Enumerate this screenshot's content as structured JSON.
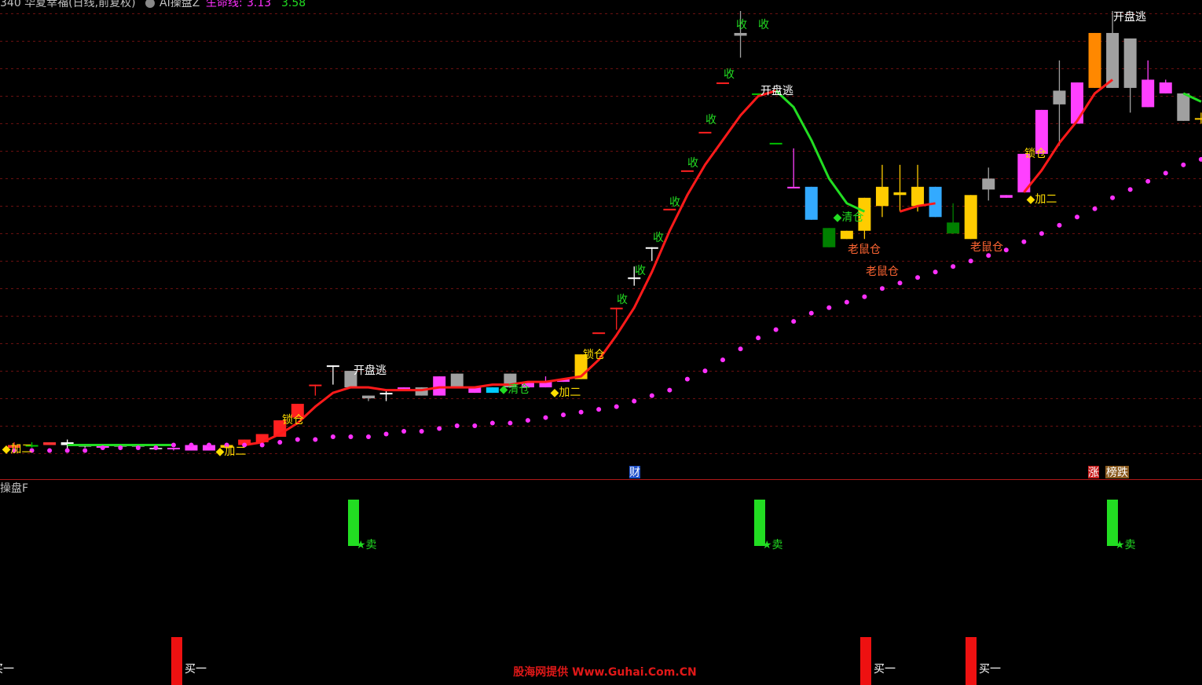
{
  "header": {
    "stock": "340 华夏幸福(日线,前复权)",
    "indicator": "AI操盘Z",
    "lifeline_label": "生命线:",
    "lifeline_values": [
      3.13,
      3.58
    ]
  },
  "chart_data": {
    "type": "candlestick",
    "categories": [
      null,
      null,
      null,
      null,
      null,
      null,
      null,
      null,
      null,
      null,
      null,
      null,
      null,
      null,
      null,
      null,
      null,
      null,
      null,
      null,
      null,
      null,
      null,
      null,
      null,
      null,
      null,
      null,
      null,
      null,
      null,
      null,
      null,
      null,
      null,
      null,
      null,
      null,
      null,
      null,
      null,
      null,
      null,
      null,
      null,
      null,
      null,
      null,
      null,
      null,
      null,
      null,
      null,
      null,
      null,
      null,
      null,
      null,
      null,
      null,
      null,
      null,
      null,
      null,
      null,
      null,
      null,
      null
    ],
    "ylim": [
      2.9,
      4.65
    ],
    "yticks": [
      3.0,
      3.1,
      3.2,
      3.3,
      3.4,
      3.5,
      3.6,
      3.7,
      3.8,
      3.9,
      4.0,
      4.1,
      4.2,
      4.3,
      4.4,
      4.5,
      4.6
    ],
    "grid": true,
    "grid_color": "#6a1010",
    "candles": {
      "open": [
        3.02,
        3.03,
        3.03,
        3.04,
        3.03,
        3.03,
        3.03,
        3.03,
        3.02,
        3.02,
        3.01,
        3.01,
        3.02,
        3.03,
        3.04,
        3.06,
        3.13,
        3.25,
        3.32,
        3.24,
        3.21,
        3.22,
        3.23,
        3.24,
        3.21,
        3.24,
        3.22,
        3.22,
        3.24,
        3.24,
        3.24,
        3.26,
        3.27,
        3.44,
        3.53,
        3.64,
        3.75,
        3.89,
        4.03,
        4.17,
        4.35,
        4.52,
        4.31,
        4.13,
        3.97,
        3.97,
        3.82,
        3.81,
        3.81,
        3.9,
        3.94,
        3.9,
        3.97,
        3.8,
        3.78,
        3.96,
        3.93,
        3.95,
        4.09,
        4.27,
        4.2,
        4.33,
        4.33,
        4.33,
        4.26,
        4.31,
        4.21,
        4.22
      ],
      "high": [
        3.04,
        3.04,
        3.04,
        3.05,
        3.03,
        3.03,
        3.03,
        3.03,
        3.03,
        3.02,
        3.03,
        3.03,
        3.03,
        3.05,
        3.07,
        3.12,
        3.18,
        3.25,
        3.32,
        3.3,
        3.21,
        3.23,
        3.24,
        3.24,
        3.28,
        3.29,
        3.24,
        3.24,
        3.29,
        3.26,
        3.28,
        3.27,
        3.36,
        3.44,
        3.53,
        3.68,
        3.75,
        3.89,
        4.03,
        4.17,
        4.35,
        4.61,
        4.31,
        4.13,
        4.11,
        3.97,
        3.82,
        3.81,
        3.93,
        4.05,
        4.05,
        4.05,
        3.97,
        3.91,
        3.94,
        4.04,
        3.94,
        4.09,
        4.25,
        4.43,
        4.35,
        4.53,
        4.61,
        4.51,
        4.43,
        4.36,
        4.31,
        4.24
      ],
      "low": [
        3.02,
        3.02,
        3.03,
        3.01,
        3.02,
        3.02,
        3.02,
        3.02,
        3.02,
        3.01,
        3.01,
        3.01,
        3.02,
        3.03,
        3.04,
        3.06,
        3.13,
        3.21,
        3.25,
        3.24,
        3.19,
        3.19,
        3.23,
        3.21,
        3.21,
        3.24,
        3.22,
        3.22,
        3.24,
        3.24,
        3.24,
        3.26,
        3.27,
        3.44,
        3.45,
        3.61,
        3.7,
        3.89,
        4.03,
        4.17,
        4.35,
        4.44,
        4.31,
        4.13,
        3.97,
        3.85,
        3.75,
        3.78,
        3.78,
        3.86,
        3.88,
        3.88,
        3.86,
        3.8,
        3.78,
        3.92,
        3.93,
        3.95,
        4.09,
        4.12,
        4.2,
        4.33,
        4.33,
        4.24,
        4.26,
        4.31,
        4.21,
        4.2
      ],
      "close": [
        3.03,
        3.03,
        3.04,
        3.03,
        3.03,
        3.02,
        3.03,
        3.03,
        3.02,
        3.02,
        3.03,
        3.03,
        3.03,
        3.05,
        3.07,
        3.12,
        3.18,
        3.25,
        3.32,
        3.3,
        3.2,
        3.22,
        3.24,
        3.21,
        3.28,
        3.29,
        3.24,
        3.24,
        3.29,
        3.26,
        3.26,
        3.27,
        3.36,
        3.44,
        3.53,
        3.64,
        3.75,
        3.89,
        4.03,
        4.17,
        4.35,
        4.53,
        4.31,
        4.13,
        3.97,
        3.85,
        3.75,
        3.78,
        3.93,
        3.97,
        3.95,
        3.97,
        3.86,
        3.84,
        3.94,
        4.0,
        3.94,
        4.09,
        4.25,
        4.32,
        4.35,
        4.53,
        4.53,
        4.51,
        4.36,
        4.35,
        4.31,
        4.22
      ],
      "colors": [
        "#ff3333",
        "#00c000",
        "#ff3333",
        "#ffffff",
        "#c0c0c0",
        "#ff40ff",
        "#c0c0c0",
        "#c0c0c0",
        "#c0c0c0",
        "#ff40ff",
        "#ff40ff",
        "#ff40ff",
        "#ffcc00",
        "#ff2020",
        "#ff2020",
        "#ff2020",
        "#ff2020",
        "#ff2020",
        "#ffffff",
        "#a0a0a0",
        "#a0a0a0",
        "#ffffff",
        "#ff40ff",
        "#a0a0a0",
        "#ff40ff",
        "#a0a0a0",
        "#ff40ff",
        "#00ccff",
        "#a0a0a0",
        "#ff40ff",
        "#ff40ff",
        "#ff40ff",
        "#ffcc00",
        "#ff2020",
        "#ff2020",
        "#ffffff",
        "#ffffff",
        "#ff2020",
        "#ff2020",
        "#ff2020",
        "#ff2020",
        "#a0a0a0",
        "#00c000",
        "#00c000",
        "#ff40ff",
        "#33aaff",
        "#008000",
        "#ffcc00",
        "#ffcc00",
        "#ffcc00",
        "#ffcc00",
        "#ffcc00",
        "#33aaff",
        "#008000",
        "#ffcc00",
        "#a0a0a0",
        "#ff40ff",
        "#ff40ff",
        "#ff40ff",
        "#a0a0a0",
        "#ff40ff",
        "#ff8800",
        "#a0a0a0",
        "#a0a0a0",
        "#ff40ff",
        "#ff40ff",
        "#a0a0a0",
        "#ffcc00"
      ]
    },
    "lines": [
      {
        "color": "#ff1a1a",
        "values": [
          null,
          null,
          null,
          null,
          null,
          null,
          null,
          null,
          null,
          null,
          null,
          null,
          null,
          3.03,
          3.04,
          3.07,
          3.11,
          3.17,
          3.22,
          3.24,
          3.24,
          3.23,
          3.23,
          3.23,
          3.24,
          3.24,
          3.24,
          3.25,
          3.25,
          3.26,
          3.26,
          3.27,
          3.28,
          3.34,
          3.43,
          3.53,
          3.66,
          3.81,
          3.94,
          4.05,
          4.14,
          4.23,
          4.3,
          4.32,
          null,
          null,
          null,
          null,
          null,
          null,
          3.88,
          3.9,
          3.91,
          null,
          null,
          null,
          null,
          3.95,
          4.03,
          4.13,
          4.21,
          4.31,
          4.36,
          null,
          null,
          null,
          null,
          null
        ]
      },
      {
        "color": "#22dd22",
        "values": [
          null,
          null,
          null,
          3.03,
          3.03,
          3.03,
          3.03,
          3.03,
          3.03,
          3.03,
          null,
          null,
          null,
          null,
          null,
          null,
          null,
          null,
          null,
          null,
          null,
          null,
          null,
          null,
          null,
          null,
          null,
          null,
          null,
          null,
          null,
          null,
          null,
          null,
          null,
          null,
          null,
          null,
          null,
          null,
          null,
          null,
          null,
          4.32,
          4.26,
          4.14,
          4.0,
          3.91,
          3.88,
          null,
          null,
          null,
          null,
          null,
          null,
          null,
          null,
          null,
          null,
          null,
          null,
          null,
          null,
          null,
          null,
          null,
          4.31,
          4.28
        ]
      }
    ],
    "dots": {
      "color": "#ff30ff",
      "values": [
        3.01,
        3.01,
        3.01,
        3.01,
        3.01,
        3.02,
        3.02,
        3.02,
        3.02,
        3.03,
        3.03,
        3.03,
        3.03,
        3.03,
        3.03,
        3.04,
        3.05,
        3.05,
        3.06,
        3.06,
        3.06,
        3.07,
        3.08,
        3.08,
        3.09,
        3.1,
        3.1,
        3.11,
        3.11,
        3.12,
        3.13,
        3.14,
        3.15,
        3.16,
        3.17,
        3.19,
        3.21,
        3.23,
        3.27,
        3.3,
        3.34,
        3.38,
        3.42,
        3.45,
        3.48,
        3.51,
        3.53,
        3.55,
        3.57,
        3.6,
        3.62,
        3.64,
        3.66,
        3.68,
        3.7,
        3.72,
        3.74,
        3.77,
        3.8,
        3.83,
        3.86,
        3.89,
        3.93,
        3.96,
        3.99,
        4.02,
        4.05,
        4.07
      ]
    }
  },
  "annotations": [
    {
      "text": "收",
      "color": "#22dd22"
    },
    {
      "text": "收",
      "color": "#22dd22"
    },
    {
      "text": "收",
      "color": "#22dd22"
    },
    {
      "text": "收",
      "color": "#22dd22"
    },
    {
      "text": "收",
      "color": "#22dd22"
    },
    {
      "text": "收",
      "color": "#22dd22"
    },
    {
      "text": "收",
      "color": "#22dd22"
    },
    {
      "text": "收",
      "color": "#22dd22"
    },
    {
      "text": "收",
      "color": "#22dd22"
    },
    {
      "text": "锁仓",
      "color": "#ffdd00"
    },
    {
      "text": "锁仓",
      "color": "#ffdd00"
    },
    {
      "text": "锁仓",
      "color": "#ffdd00"
    },
    {
      "text": "开盘逃",
      "color": "#ffffff"
    },
    {
      "text": "开盘逃",
      "color": "#ffffff"
    },
    {
      "text": "开盘逃",
      "color": "#ffffff"
    },
    {
      "text": "◆加二",
      "color": "#ffdd00"
    },
    {
      "text": "◆加二",
      "color": "#ffdd00"
    },
    {
      "text": "◆加二",
      "color": "#ffdd00"
    },
    {
      "text": "◆加二",
      "color": "#ffdd00"
    },
    {
      "text": "◆清仓",
      "color": "#22dd22"
    },
    {
      "text": "◆清仓",
      "color": "#22dd22"
    },
    {
      "text": "老鼠仓",
      "color": "#ff6633"
    },
    {
      "text": "老鼠仓",
      "color": "#ff6633"
    },
    {
      "text": "老鼠仓",
      "color": "#ff6633"
    }
  ],
  "tags": [
    {
      "text": "财",
      "color": "#1e50c8"
    },
    {
      "text": "涨",
      "color": "#c81e1e"
    },
    {
      "text": "榜跌",
      "color": "#8a5a1e"
    }
  ],
  "lower_panel": {
    "title": "操盘F",
    "sell": [
      "★卖",
      "★卖",
      "★卖"
    ],
    "buy": [
      "买一",
      "买一",
      "买一",
      "买一"
    ]
  },
  "watermark": "股海网提供 Www.Guhai.Com.CN"
}
